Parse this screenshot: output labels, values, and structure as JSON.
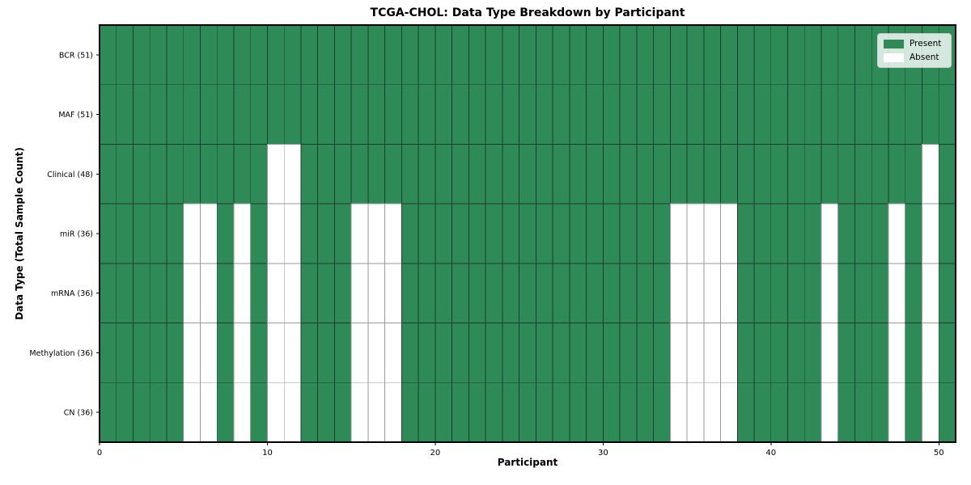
{
  "chart_data": {
    "type": "heatmap",
    "title": "TCGA-CHOL: Data Type Breakdown by Participant",
    "xlabel": "Participant",
    "ylabel": "Data Type (Total Sample Count)",
    "n_participants": 51,
    "xlim": [
      0,
      51
    ],
    "x_ticks": [
      0,
      10,
      20,
      30,
      40,
      50
    ],
    "grid": "cell-edges",
    "legend": {
      "position": "upper-right",
      "entries": [
        {
          "label": "Present",
          "color": "#2e8b57"
        },
        {
          "label": "Absent",
          "color": "#ffffff"
        }
      ]
    },
    "rows": [
      {
        "label": "BCR (51)",
        "total": 51,
        "absent_participants": []
      },
      {
        "label": "MAF (51)",
        "total": 51,
        "absent_participants": []
      },
      {
        "label": "Clinical (48)",
        "total": 48,
        "absent_participants": [
          10,
          11,
          49
        ]
      },
      {
        "label": "miR (36)",
        "total": 36,
        "absent_participants": [
          5,
          6,
          8,
          10,
          11,
          15,
          16,
          17,
          34,
          35,
          36,
          37,
          43,
          47,
          49
        ]
      },
      {
        "label": "mRNA (36)",
        "total": 36,
        "absent_participants": [
          5,
          6,
          8,
          10,
          11,
          15,
          16,
          17,
          34,
          35,
          36,
          37,
          43,
          47,
          49
        ]
      },
      {
        "label": "Methylation (36)",
        "total": 36,
        "absent_participants": [
          5,
          6,
          8,
          10,
          11,
          15,
          16,
          17,
          34,
          35,
          36,
          37,
          43,
          47,
          49
        ]
      },
      {
        "label": "CN (36)",
        "total": 36,
        "absent_participants": [
          5,
          6,
          8,
          10,
          11,
          15,
          16,
          17,
          34,
          35,
          36,
          37,
          43,
          47,
          49
        ]
      }
    ],
    "colors": {
      "present": "#2e8b57",
      "absent": "#ffffff",
      "present_edge": "#1e3b2b",
      "absent_edge": "#9a9a9a",
      "frame": "#000000",
      "tick": "#000000",
      "text": "#000000"
    }
  }
}
